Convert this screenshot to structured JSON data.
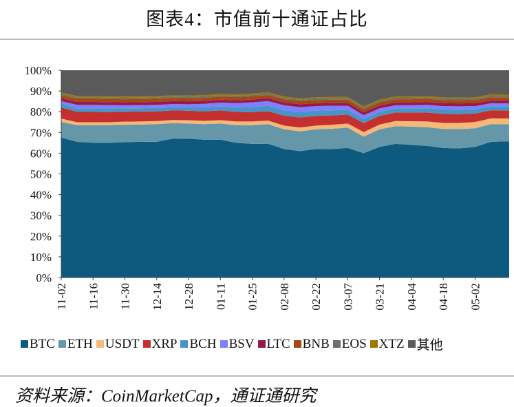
{
  "title": "图表4：市值前十通证占比",
  "source": "资料来源：CoinMarketCap，通证通研究",
  "chart_data": {
    "type": "area",
    "stacked": true,
    "title": "图表4：市值前十通证占比",
    "xlabel": "",
    "ylabel": "",
    "ylim": [
      0,
      100
    ],
    "y_ticks": [
      "0%",
      "10%",
      "20%",
      "30%",
      "40%",
      "50%",
      "60%",
      "70%",
      "80%",
      "90%",
      "100%"
    ],
    "x_ticks": [
      "11-02",
      "11-16",
      "11-30",
      "12-14",
      "12-28",
      "01-11",
      "01-25",
      "02-08",
      "02-22",
      "03-07",
      "03-21",
      "04-04",
      "04-18",
      "05-02"
    ],
    "x_day_range": [
      0,
      197
    ],
    "legend_position": "bottom",
    "x": [
      "11-02",
      "11-09",
      "11-16",
      "11-23",
      "11-30",
      "12-07",
      "12-14",
      "12-21",
      "12-28",
      "01-04",
      "01-11",
      "01-18",
      "01-25",
      "02-01",
      "02-08",
      "02-15",
      "02-22",
      "02-29",
      "03-07",
      "03-14",
      "03-21",
      "03-28",
      "04-04",
      "04-11",
      "04-18",
      "04-25",
      "05-02",
      "05-09",
      "05-16"
    ],
    "series": [
      {
        "name": "BTC",
        "color": "#0e5a7e",
        "values": [
          67.5,
          65.5,
          65,
          65,
          65.3,
          65.5,
          65.5,
          67,
          67,
          66.5,
          66.5,
          65,
          64.5,
          64.5,
          62,
          61,
          62,
          62,
          62.5,
          60,
          63,
          64.5,
          64,
          63.5,
          62.5,
          62.3,
          63,
          65.5,
          65.7
        ]
      },
      {
        "name": "ETH",
        "color": "#6697a8",
        "values": [
          7.6,
          8.0,
          8.5,
          8.5,
          8.4,
          8.3,
          8.5,
          7.5,
          7.3,
          7.5,
          7.8,
          8.5,
          9.0,
          9.5,
          9.5,
          9.5,
          9.5,
          9.8,
          9.8,
          8.0,
          8.5,
          8.5,
          8.8,
          9.0,
          9.2,
          9.3,
          9.0,
          8.5,
          8.3
        ]
      },
      {
        "name": "USDT",
        "color": "#f4b878",
        "values": [
          1.6,
          1.4,
          1.4,
          1.4,
          1.5,
          1.5,
          1.5,
          1.5,
          1.6,
          1.6,
          1.6,
          1.8,
          1.8,
          1.7,
          1.8,
          1.9,
          1.8,
          1.9,
          2.0,
          2.2,
          2.3,
          2.5,
          2.6,
          2.8,
          2.9,
          3.0,
          3.0,
          2.8,
          2.7
        ]
      },
      {
        "name": "XRP",
        "color": "#c4302f",
        "values": [
          5.4,
          5.0,
          5.0,
          4.9,
          4.8,
          4.8,
          4.7,
          4.6,
          4.6,
          4.6,
          4.7,
          4.6,
          4.5,
          4.5,
          4.8,
          4.8,
          4.7,
          4.5,
          4.3,
          4.3,
          4.2,
          4.1,
          4.2,
          4.3,
          4.3,
          4.2,
          4.1,
          3.9,
          3.9
        ]
      },
      {
        "name": "BCH",
        "color": "#4795c6",
        "values": [
          2.0,
          1.7,
          1.7,
          1.7,
          1.6,
          1.6,
          1.6,
          1.6,
          1.6,
          1.8,
          1.9,
          2.2,
          2.5,
          2.6,
          2.6,
          2.7,
          2.5,
          2.5,
          2.3,
          2.0,
          2.0,
          2.0,
          2.0,
          2.1,
          2.2,
          2.2,
          2.1,
          2.0,
          2.0
        ]
      },
      {
        "name": "BSV",
        "color": "#7f7fff",
        "values": [
          1.0,
          1.7,
          1.7,
          1.7,
          1.5,
          1.5,
          1.5,
          1.5,
          1.5,
          1.8,
          1.9,
          2.0,
          2.2,
          2.3,
          2.4,
          2.3,
          2.2,
          2.2,
          2.0,
          1.8,
          1.6,
          1.5,
          1.5,
          1.6,
          1.6,
          1.6,
          1.5,
          1.4,
          1.4
        ]
      },
      {
        "name": "LTC",
        "color": "#951b4f",
        "values": [
          1.4,
          1.4,
          1.4,
          1.4,
          1.4,
          1.4,
          1.4,
          1.4,
          1.4,
          1.4,
          1.4,
          1.4,
          1.4,
          1.4,
          1.4,
          1.4,
          1.4,
          1.4,
          1.4,
          1.4,
          1.4,
          1.4,
          1.4,
          1.4,
          1.4,
          1.4,
          1.4,
          1.4,
          1.4
        ]
      },
      {
        "name": "BNB",
        "color": "#a64810",
        "values": [
          1.5,
          1.5,
          1.5,
          1.5,
          1.5,
          1.5,
          1.5,
          1.5,
          1.5,
          1.5,
          1.5,
          1.5,
          1.5,
          1.5,
          1.5,
          1.5,
          1.5,
          1.5,
          1.5,
          1.5,
          1.5,
          1.5,
          1.5,
          1.5,
          1.5,
          1.5,
          1.5,
          1.5,
          1.5
        ]
      },
      {
        "name": "EOS",
        "color": "#6e6e6e",
        "values": [
          0.7,
          0.7,
          0.7,
          0.7,
          0.7,
          0.7,
          0.7,
          0.7,
          0.7,
          0.7,
          0.7,
          0.7,
          0.7,
          0.7,
          0.7,
          0.7,
          0.7,
          0.7,
          0.7,
          0.7,
          0.7,
          0.7,
          0.7,
          0.7,
          0.7,
          0.7,
          0.7,
          0.7,
          0.7
        ]
      },
      {
        "name": "XTZ",
        "color": "#9e7600",
        "values": [
          0.6,
          0.6,
          0.6,
          0.6,
          0.6,
          0.6,
          0.6,
          0.6,
          0.6,
          0.6,
          0.6,
          0.6,
          0.6,
          0.6,
          0.6,
          0.6,
          0.6,
          0.6,
          0.6,
          0.6,
          0.6,
          0.6,
          0.6,
          0.6,
          0.6,
          0.6,
          0.6,
          0.6,
          0.6
        ]
      },
      {
        "name": "其他",
        "color": "#5a5a5a",
        "values": [
          10.7,
          12.5,
          12.5,
          12.6,
          12.7,
          12.6,
          12.5,
          12.1,
          12.2,
          12.0,
          11.4,
          11.7,
          11.3,
          10.7,
          12.7,
          13.6,
          13.1,
          12.9,
          12.9,
          17.5,
          14.2,
          12.7,
          12.7,
          12.5,
          13.1,
          13.2,
          13.1,
          11.7,
          11.8
        ]
      }
    ]
  }
}
